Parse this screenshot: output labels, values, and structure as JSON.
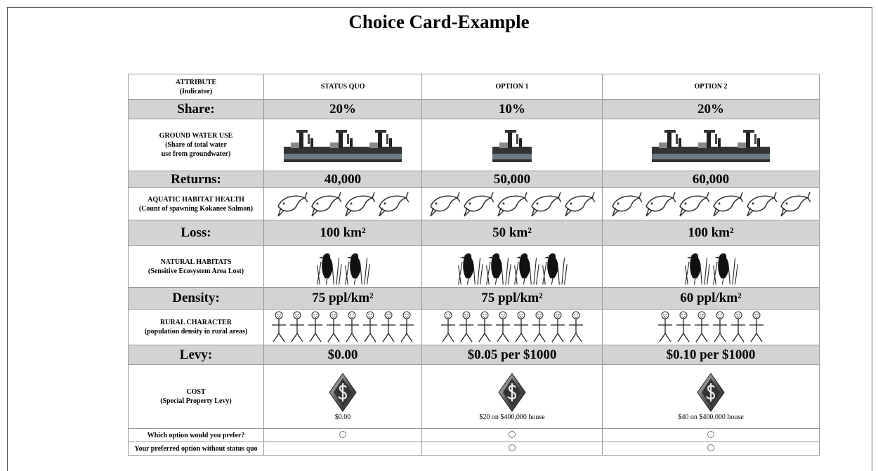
{
  "title": "Choice Card-Example",
  "table": {
    "header": {
      "attribute": "ATTRIBUTE",
      "indicator": "(Indicator)",
      "options": [
        "STATUS QUO",
        "OPTION 1",
        "OPTION 2"
      ]
    },
    "rows": [
      {
        "label": "Share:",
        "values": [
          "20%",
          "10%",
          "20%"
        ]
      },
      {
        "label": "GROUND WATER USE",
        "note": "(Share of total water use from groundwater)"
      },
      {
        "label": "Returns:",
        "values": [
          "40,000",
          "50,000",
          "60,000"
        ]
      },
      {
        "label": "AQUATIC HABITAT HEALTH",
        "note": "(Count of spawning Kokanee Salmon)"
      },
      {
        "label": "Loss:",
        "values": [
          "100 km²",
          "50 km²",
          "100 km²"
        ]
      },
      {
        "label": "NATURAL HABITATS",
        "note": "(Sensitive Ecosystem Area Lost)"
      },
      {
        "label": "Density:",
        "values": [
          "75 ppl/km²",
          "75 ppl/km²",
          "60 ppl/km²"
        ]
      },
      {
        "label": "RURAL CHARACTER",
        "note": "(population density in rural areas)"
      },
      {
        "label": "Levy:",
        "values": [
          "$0.00",
          "$0.05 per $1000",
          "$0.10 per $1000"
        ]
      },
      {
        "label": "COST",
        "note": "(Special Property Levy)",
        "captions": [
          "$0.00",
          "$20 on $400,000 house",
          "$40 on $400,000 house"
        ]
      },
      {
        "label": "Which option would you prefer?"
      },
      {
        "label": "Your preferred option without status quo"
      }
    ]
  }
}
